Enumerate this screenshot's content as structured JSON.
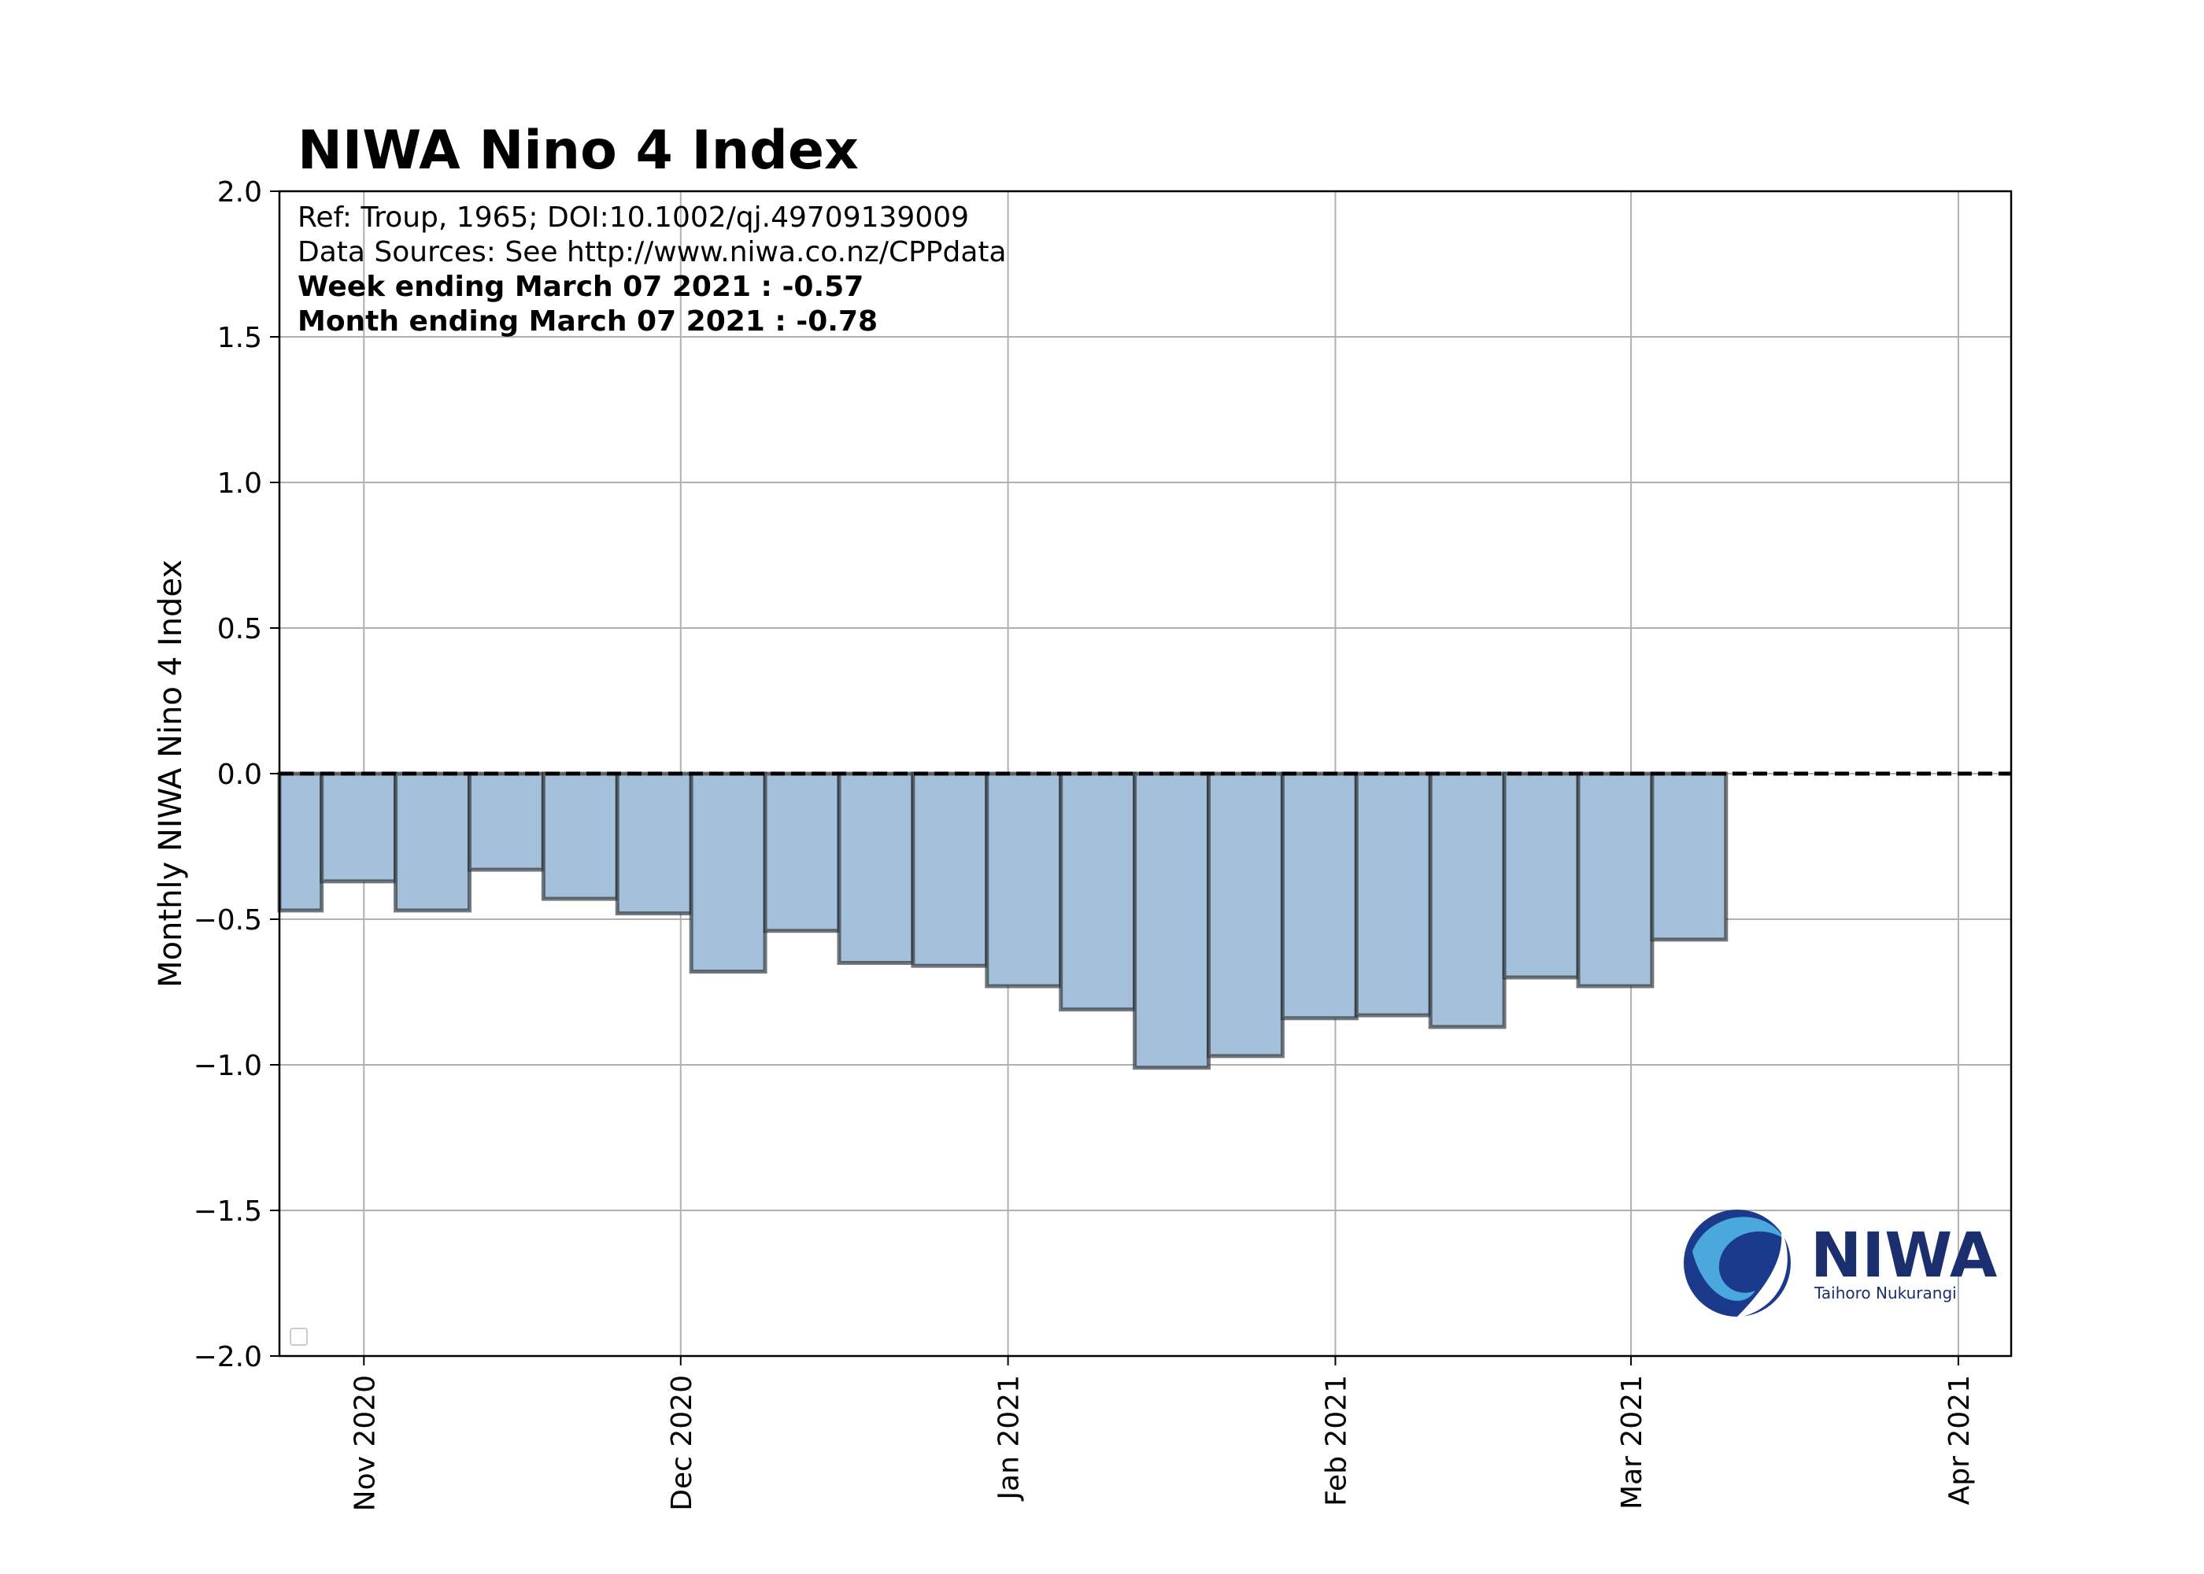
{
  "chart_data": {
    "type": "bar",
    "title": "NIWA Nino 4 Index",
    "ylabel": "Monthly NIWA Nino 4 Index",
    "xlabel": "",
    "ylim": [
      -2.0,
      2.0
    ],
    "xlim": [
      "2020-10-24",
      "2021-04-06"
    ],
    "yticks": [
      2.0,
      1.5,
      1.0,
      0.5,
      0.0,
      -0.5,
      -1.0,
      -1.5,
      -2.0
    ],
    "ytick_labels": [
      "2.0",
      "1.5",
      "1.0",
      "0.5",
      "0.0",
      "−0.5",
      "−1.0",
      "−1.5",
      "−2.0"
    ],
    "xticks": [
      {
        "date": "2020-11-01",
        "label": "Nov 2020"
      },
      {
        "date": "2020-12-01",
        "label": "Dec 2020"
      },
      {
        "date": "2021-01-01",
        "label": "Jan 2021"
      },
      {
        "date": "2021-02-01",
        "label": "Feb 2021"
      },
      {
        "date": "2021-03-01",
        "label": "Mar 2021"
      },
      {
        "date": "2021-04-01",
        "label": "Apr 2021"
      }
    ],
    "grid": true,
    "bar_color": "#a4c0da",
    "bar_edge_color": "#2b2f33",
    "zero_line": "dashed",
    "bars": [
      {
        "start": "2020-10-18",
        "end": "2020-10-28",
        "value": -0.47
      },
      {
        "start": "2020-10-28",
        "end": "2020-11-04",
        "value": -0.37
      },
      {
        "start": "2020-11-04",
        "end": "2020-11-11",
        "value": -0.47
      },
      {
        "start": "2020-11-11",
        "end": "2020-11-18",
        "value": -0.33
      },
      {
        "start": "2020-11-18",
        "end": "2020-11-25",
        "value": -0.43
      },
      {
        "start": "2020-11-25",
        "end": "2020-12-02",
        "value": -0.48
      },
      {
        "start": "2020-12-02",
        "end": "2020-12-09",
        "value": -0.68
      },
      {
        "start": "2020-12-09",
        "end": "2020-12-16",
        "value": -0.54
      },
      {
        "start": "2020-12-16",
        "end": "2020-12-23",
        "value": -0.65
      },
      {
        "start": "2020-12-23",
        "end": "2020-12-30",
        "value": -0.66
      },
      {
        "start": "2020-12-30",
        "end": "2021-01-06",
        "value": -0.73
      },
      {
        "start": "2021-01-06",
        "end": "2021-01-13",
        "value": -0.81
      },
      {
        "start": "2021-01-13",
        "end": "2021-01-20",
        "value": -1.01
      },
      {
        "start": "2021-01-20",
        "end": "2021-01-27",
        "value": -0.97
      },
      {
        "start": "2021-01-27",
        "end": "2021-02-03",
        "value": -0.84
      },
      {
        "start": "2021-02-03",
        "end": "2021-02-10",
        "value": -0.83
      },
      {
        "start": "2021-02-10",
        "end": "2021-02-17",
        "value": -0.87
      },
      {
        "start": "2021-02-17",
        "end": "2021-02-24",
        "value": -0.7
      },
      {
        "start": "2021-02-24",
        "end": "2021-03-03",
        "value": -0.73
      },
      {
        "start": "2021-03-03",
        "end": "2021-03-10",
        "value": -0.57
      }
    ],
    "annotations": [
      {
        "text": "Ref: Troup, 1965; DOI:10.1002/qj.49709139009",
        "bold": false
      },
      {
        "text": "Data Sources: See http://www.niwa.co.nz/CPPdata",
        "bold": false
      },
      {
        "text": "Week ending March 07 2021 : -0.57",
        "bold": true
      },
      {
        "text": "Month ending March 07 2021 : -0.78",
        "bold": true
      }
    ],
    "logo": {
      "name": "NIWA",
      "tagline": "Taihoro Nukurangi"
    },
    "legend": "bottom-left (empty)"
  }
}
